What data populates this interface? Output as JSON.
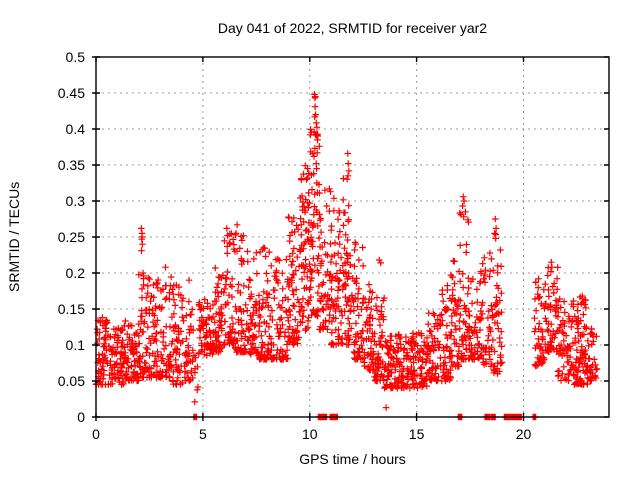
{
  "figure": {
    "title": "Day 041 of 2022, SRMTID for receiver yar2"
  },
  "chart_data": {
    "type": "scatter",
    "title": "Day 041 of 2022, SRMTID for receiver yar2",
    "xlabel": "GPS time / hours",
    "ylabel": "SRMTID / TECUs",
    "xlim": [
      0,
      24
    ],
    "ylim": [
      0,
      0.5
    ],
    "xticks": [
      0,
      5,
      10,
      15,
      20
    ],
    "xtick_labels": [
      "0",
      "5",
      "10",
      "15",
      "20"
    ],
    "yticks": [
      0,
      0.05,
      0.1,
      0.15,
      0.2,
      0.25,
      0.3,
      0.35,
      0.4,
      0.45,
      0.5
    ],
    "ytick_labels": [
      "0",
      "0.05",
      "0.1",
      "0.15",
      "0.2",
      "0.25",
      "0.3",
      "0.35",
      "0.4",
      "0.45",
      "0.5"
    ],
    "grid": true,
    "legend": false,
    "marker": {
      "shape": "plus",
      "size": 7,
      "color": "#ff0000"
    },
    "colors": {
      "points": "#ff0000",
      "grid": "#9a9a9a",
      "frame": "#000000"
    },
    "seed": 7,
    "note": "dense scatter of 30s-rate SRMTID values; distribution summarized as bands [xStart,xEnd,yMin,yMax,count,skew], plus explicit peak outliers and y=0 marker segments",
    "bands": [
      [
        0.0,
        0.7,
        0.045,
        0.135,
        75,
        1.7
      ],
      [
        0.7,
        1.3,
        0.045,
        0.125,
        65,
        1.7
      ],
      [
        1.3,
        2.0,
        0.05,
        0.135,
        75,
        1.7
      ],
      [
        2.0,
        2.45,
        0.055,
        0.205,
        50,
        2.1
      ],
      [
        2.45,
        3.0,
        0.055,
        0.2,
        55,
        2.1
      ],
      [
        3.0,
        3.55,
        0.055,
        0.195,
        55,
        2.0
      ],
      [
        3.55,
        4.1,
        0.045,
        0.185,
        55,
        2.0
      ],
      [
        4.1,
        4.55,
        0.05,
        0.165,
        40,
        1.8
      ],
      [
        4.55,
        4.8,
        0.03,
        0.1,
        7,
        1.5
      ],
      [
        4.8,
        5.5,
        0.085,
        0.165,
        65,
        1.4
      ],
      [
        5.5,
        6.0,
        0.09,
        0.21,
        55,
        1.6
      ],
      [
        6.0,
        6.5,
        0.1,
        0.26,
        55,
        1.9
      ],
      [
        6.5,
        7.05,
        0.09,
        0.255,
        55,
        2.1
      ],
      [
        7.05,
        7.6,
        0.085,
        0.23,
        55,
        1.9
      ],
      [
        7.6,
        8.3,
        0.08,
        0.235,
        70,
        1.9
      ],
      [
        8.3,
        9.0,
        0.08,
        0.22,
        65,
        1.7
      ],
      [
        9.0,
        9.5,
        0.1,
        0.28,
        60,
        1.5
      ],
      [
        9.5,
        10.0,
        0.12,
        0.35,
        70,
        1.5
      ],
      [
        10.0,
        10.45,
        0.14,
        0.41,
        65,
        1.4
      ],
      [
        10.45,
        11.0,
        0.12,
        0.33,
        55,
        1.5
      ],
      [
        11.0,
        11.5,
        0.1,
        0.305,
        55,
        1.6
      ],
      [
        11.5,
        12.0,
        0.1,
        0.335,
        60,
        1.6
      ],
      [
        12.0,
        12.55,
        0.08,
        0.25,
        55,
        1.9
      ],
      [
        12.55,
        13.0,
        0.065,
        0.185,
        50,
        1.7
      ],
      [
        13.0,
        13.5,
        0.05,
        0.175,
        55,
        1.9
      ],
      [
        13.5,
        14.0,
        0.04,
        0.12,
        55,
        1.5
      ],
      [
        14.0,
        14.75,
        0.04,
        0.115,
        75,
        1.5
      ],
      [
        14.75,
        15.5,
        0.04,
        0.12,
        75,
        1.5
      ],
      [
        15.5,
        16.0,
        0.05,
        0.145,
        55,
        1.6
      ],
      [
        16.0,
        16.6,
        0.05,
        0.19,
        60,
        1.8
      ],
      [
        16.6,
        17.0,
        0.07,
        0.25,
        45,
        1.9
      ],
      [
        17.0,
        17.45,
        0.08,
        0.3,
        45,
        1.9
      ],
      [
        17.45,
        18.1,
        0.08,
        0.225,
        60,
        1.7
      ],
      [
        18.1,
        18.6,
        0.07,
        0.23,
        45,
        1.7
      ],
      [
        18.6,
        19.0,
        0.06,
        0.26,
        40,
        1.8
      ],
      [
        20.5,
        21.0,
        0.07,
        0.19,
        45,
        1.4
      ],
      [
        21.0,
        21.6,
        0.09,
        0.21,
        55,
        1.4
      ],
      [
        21.6,
        22.3,
        0.05,
        0.165,
        60,
        1.4
      ],
      [
        22.3,
        23.0,
        0.045,
        0.17,
        95,
        1.9
      ],
      [
        23.0,
        23.45,
        0.05,
        0.135,
        35,
        1.4
      ]
    ],
    "outliers": [
      [
        0.3,
        0.138
      ],
      [
        2.12,
        0.262
      ],
      [
        2.15,
        0.255
      ],
      [
        2.16,
        0.25
      ],
      [
        2.14,
        0.247
      ],
      [
        2.17,
        0.24
      ],
      [
        2.13,
        0.231
      ],
      [
        2.2,
        0.2
      ],
      [
        2.22,
        0.196
      ],
      [
        3.25,
        0.208
      ],
      [
        4.35,
        0.19
      ],
      [
        4.62,
        0.021
      ],
      [
        6.12,
        0.262
      ],
      [
        6.15,
        0.252
      ],
      [
        6.6,
        0.267
      ],
      [
        6.55,
        0.255
      ],
      [
        7.5,
        0.228
      ],
      [
        7.85,
        0.235
      ],
      [
        9.85,
        0.33
      ],
      [
        9.9,
        0.345
      ],
      [
        9.95,
        0.338
      ],
      [
        10.22,
        0.448
      ],
      [
        10.26,
        0.445
      ],
      [
        10.24,
        0.443
      ],
      [
        10.25,
        0.431
      ],
      [
        10.28,
        0.42
      ],
      [
        10.23,
        0.417
      ],
      [
        10.21,
        0.396
      ],
      [
        10.27,
        0.392
      ],
      [
        10.24,
        0.373
      ],
      [
        10.2,
        0.362
      ],
      [
        10.3,
        0.352
      ],
      [
        11.35,
        0.25
      ],
      [
        11.4,
        0.24
      ],
      [
        11.78,
        0.366
      ],
      [
        11.8,
        0.352
      ],
      [
        11.83,
        0.342
      ],
      [
        11.79,
        0.335
      ],
      [
        12.15,
        0.24
      ],
      [
        12.1,
        0.232
      ],
      [
        13.25,
        0.218
      ],
      [
        13.32,
        0.214
      ],
      [
        13.57,
        0.013
      ],
      [
        14.5,
        0.111
      ],
      [
        17.18,
        0.306
      ],
      [
        17.22,
        0.3
      ],
      [
        17.15,
        0.293
      ],
      [
        17.28,
        0.285
      ],
      [
        17.2,
        0.278
      ],
      [
        18.68,
        0.275
      ],
      [
        18.72,
        0.262
      ],
      [
        18.65,
        0.255
      ],
      [
        18.7,
        0.248
      ],
      [
        20.7,
        0.192
      ],
      [
        21.3,
        0.215
      ],
      [
        21.33,
        0.208
      ],
      [
        21.28,
        0.202
      ],
      [
        22.75,
        0.168
      ],
      [
        22.8,
        0.159
      ]
    ],
    "zero_segments": [
      [
        4.58,
        4.62
      ],
      [
        4.67,
        4.71
      ],
      [
        10.4,
        10.8
      ],
      [
        10.95,
        11.3
      ],
      [
        16.95,
        17.12
      ],
      [
        18.2,
        18.42
      ],
      [
        18.48,
        18.68
      ],
      [
        19.1,
        19.9
      ],
      [
        20.45,
        20.58
      ]
    ]
  }
}
